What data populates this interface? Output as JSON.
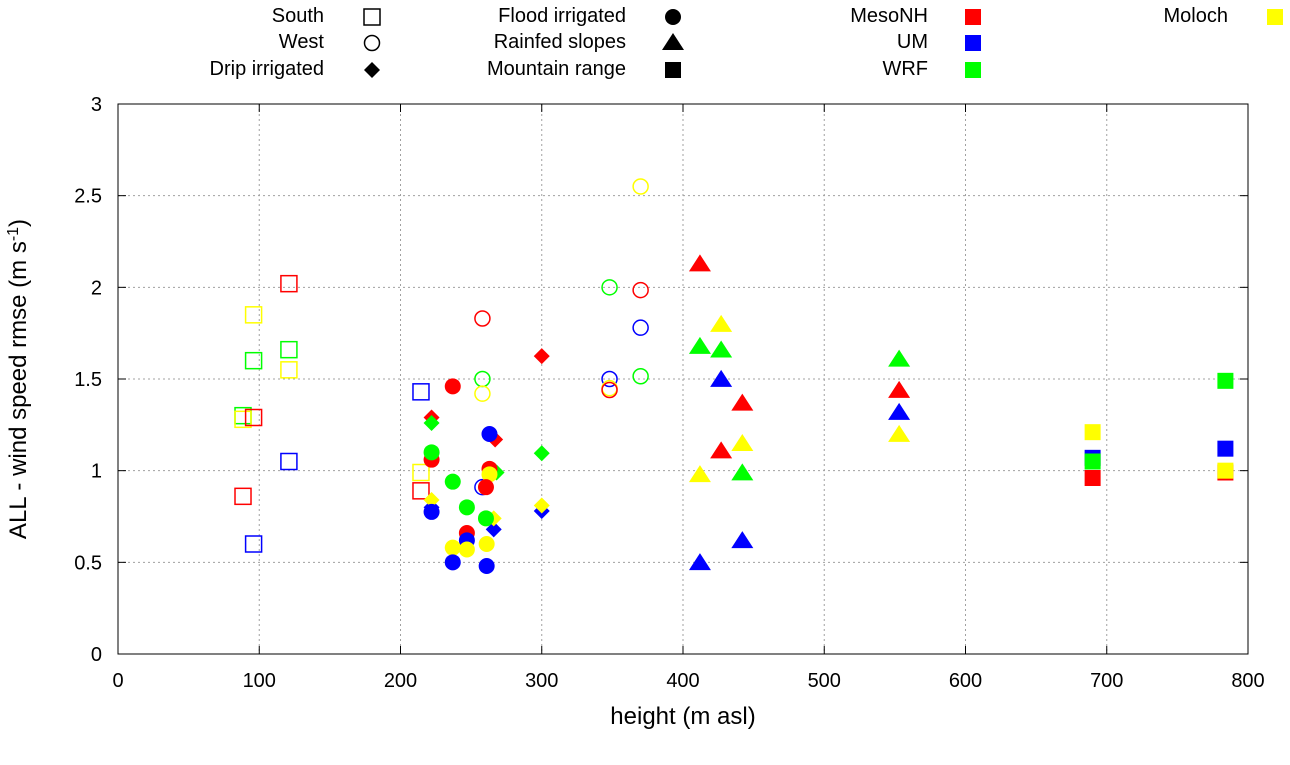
{
  "chart_data": {
    "type": "scatter",
    "title": "",
    "xlabel": "height (m asl)",
    "ylabel_main": "ALL - wind speed rmse (m s",
    "ylabel_sup": "-1",
    "ylabel_close": ")",
    "xlim": [
      0,
      800
    ],
    "ylim": [
      0,
      3
    ],
    "xticks": [
      0,
      100,
      200,
      300,
      400,
      500,
      600,
      700,
      800
    ],
    "yticks": [
      0,
      0.5,
      1,
      1.5,
      2,
      2.5,
      3
    ],
    "ytick_labels": [
      "0",
      "0.5",
      "1",
      "1.5",
      "2",
      "2.5",
      "3"
    ],
    "grid": true,
    "legend_placement": "top, outside",
    "models": [
      {
        "name": "MesoNH",
        "color": "#ff0000"
      },
      {
        "name": "UM",
        "color": "#0000ff"
      },
      {
        "name": "WRF",
        "color": "#00ff00"
      },
      {
        "name": "Moloch",
        "color": "#ffff00"
      }
    ],
    "regions": [
      {
        "name": "South",
        "marker": "open-square",
        "points": [
          [
            121,
            2.02,
            "MesoNH"
          ],
          [
            96,
            1.85,
            "Moloch"
          ],
          [
            96,
            1.6,
            "WRF"
          ],
          [
            121,
            1.66,
            "WRF"
          ],
          [
            121,
            1.55,
            "Moloch"
          ],
          [
            88.5,
            1.3,
            "WRF"
          ],
          [
            88.5,
            1.28,
            "Moloch"
          ],
          [
            96,
            1.29,
            "MesoNH"
          ],
          [
            121,
            1.05,
            "UM"
          ],
          [
            88.5,
            0.86,
            "MesoNH"
          ],
          [
            96,
            0.6,
            "UM"
          ],
          [
            214.5,
            1.43,
            "UM"
          ],
          [
            214.5,
            0.99,
            "Moloch"
          ],
          [
            214.5,
            0.89,
            "MesoNH"
          ]
        ]
      },
      {
        "name": "West",
        "marker": "open-circle",
        "points": [
          [
            258,
            1.5,
            "WRF"
          ],
          [
            258,
            1.42,
            "Moloch"
          ],
          [
            258,
            1.83,
            "MesoNH"
          ],
          [
            258,
            0.91,
            "UM"
          ],
          [
            348,
            2.0,
            "WRF"
          ],
          [
            370,
            1.985,
            "MesoNH"
          ],
          [
            370,
            1.78,
            "UM"
          ],
          [
            348,
            1.5,
            "UM"
          ],
          [
            370,
            1.515,
            "WRF"
          ],
          [
            348,
            1.45,
            "Moloch"
          ],
          [
            348,
            1.44,
            "MesoNH"
          ],
          [
            370,
            2.55,
            "Moloch"
          ]
        ]
      },
      {
        "name": "Drip irrigated",
        "marker": "filled-diamond",
        "points": [
          [
            222,
            1.29,
            "MesoNH"
          ],
          [
            222,
            1.26,
            "WRF"
          ],
          [
            267,
            1.17,
            "MesoNH"
          ],
          [
            268,
            0.99,
            "WRF"
          ],
          [
            222,
            0.8,
            "UM"
          ],
          [
            222,
            0.84,
            "Moloch"
          ],
          [
            266,
            0.68,
            "UM"
          ],
          [
            266,
            0.74,
            "Moloch"
          ],
          [
            300,
            1.625,
            "MesoNH"
          ],
          [
            300,
            1.095,
            "WRF"
          ],
          [
            300,
            0.78,
            "UM"
          ],
          [
            300,
            0.81,
            "Moloch"
          ]
        ]
      },
      {
        "name": "Flood irrigated",
        "marker": "filled-circle",
        "points": [
          [
            237,
            1.46,
            "MesoNH"
          ],
          [
            263,
            1.2,
            "UM"
          ],
          [
            222,
            1.06,
            "MesoNH"
          ],
          [
            222,
            1.1,
            "WRF"
          ],
          [
            263,
            1.01,
            "MesoNH"
          ],
          [
            263,
            0.98,
            "Moloch"
          ],
          [
            237,
            0.94,
            "WRF"
          ],
          [
            260.5,
            0.91,
            "MesoNH"
          ],
          [
            222,
            0.775,
            "UM"
          ],
          [
            247,
            0.8,
            "WRF"
          ],
          [
            260.5,
            0.74,
            "WRF"
          ],
          [
            247,
            0.66,
            "MesoNH"
          ],
          [
            247,
            0.62,
            "UM"
          ],
          [
            237,
            0.58,
            "Moloch"
          ],
          [
            247,
            0.57,
            "Moloch"
          ],
          [
            261,
            0.6,
            "Moloch"
          ],
          [
            237,
            0.5,
            "UM"
          ],
          [
            261,
            0.48,
            "UM"
          ]
        ]
      },
      {
        "name": "Rainfed slopes",
        "marker": "filled-triangle",
        "points": [
          [
            412,
            2.12,
            "MesoNH"
          ],
          [
            427,
            1.79,
            "Moloch"
          ],
          [
            412,
            1.67,
            "WRF"
          ],
          [
            427,
            1.65,
            "WRF"
          ],
          [
            427,
            1.49,
            "UM"
          ],
          [
            442,
            1.36,
            "MesoNH"
          ],
          [
            442,
            1.14,
            "Moloch"
          ],
          [
            427,
            1.1,
            "MesoNH"
          ],
          [
            412,
            0.97,
            "Moloch"
          ],
          [
            442,
            0.98,
            "WRF"
          ],
          [
            442,
            0.61,
            "UM"
          ],
          [
            412,
            0.49,
            "UM"
          ],
          [
            553,
            1.6,
            "WRF"
          ],
          [
            553,
            1.43,
            "MesoNH"
          ],
          [
            553,
            1.31,
            "UM"
          ],
          [
            553,
            1.19,
            "Moloch"
          ]
        ]
      },
      {
        "name": "Mountain range",
        "marker": "filled-square",
        "points": [
          [
            690,
            1.07,
            "UM"
          ],
          [
            690,
            1.21,
            "Moloch"
          ],
          [
            690,
            1.05,
            "WRF"
          ],
          [
            690,
            0.96,
            "MesoNH"
          ],
          [
            784,
            1.49,
            "WRF"
          ],
          [
            784,
            1.12,
            "UM"
          ],
          [
            784,
            0.99,
            "MesoNH"
          ],
          [
            784,
            1.0,
            "Moloch"
          ]
        ]
      }
    ]
  }
}
